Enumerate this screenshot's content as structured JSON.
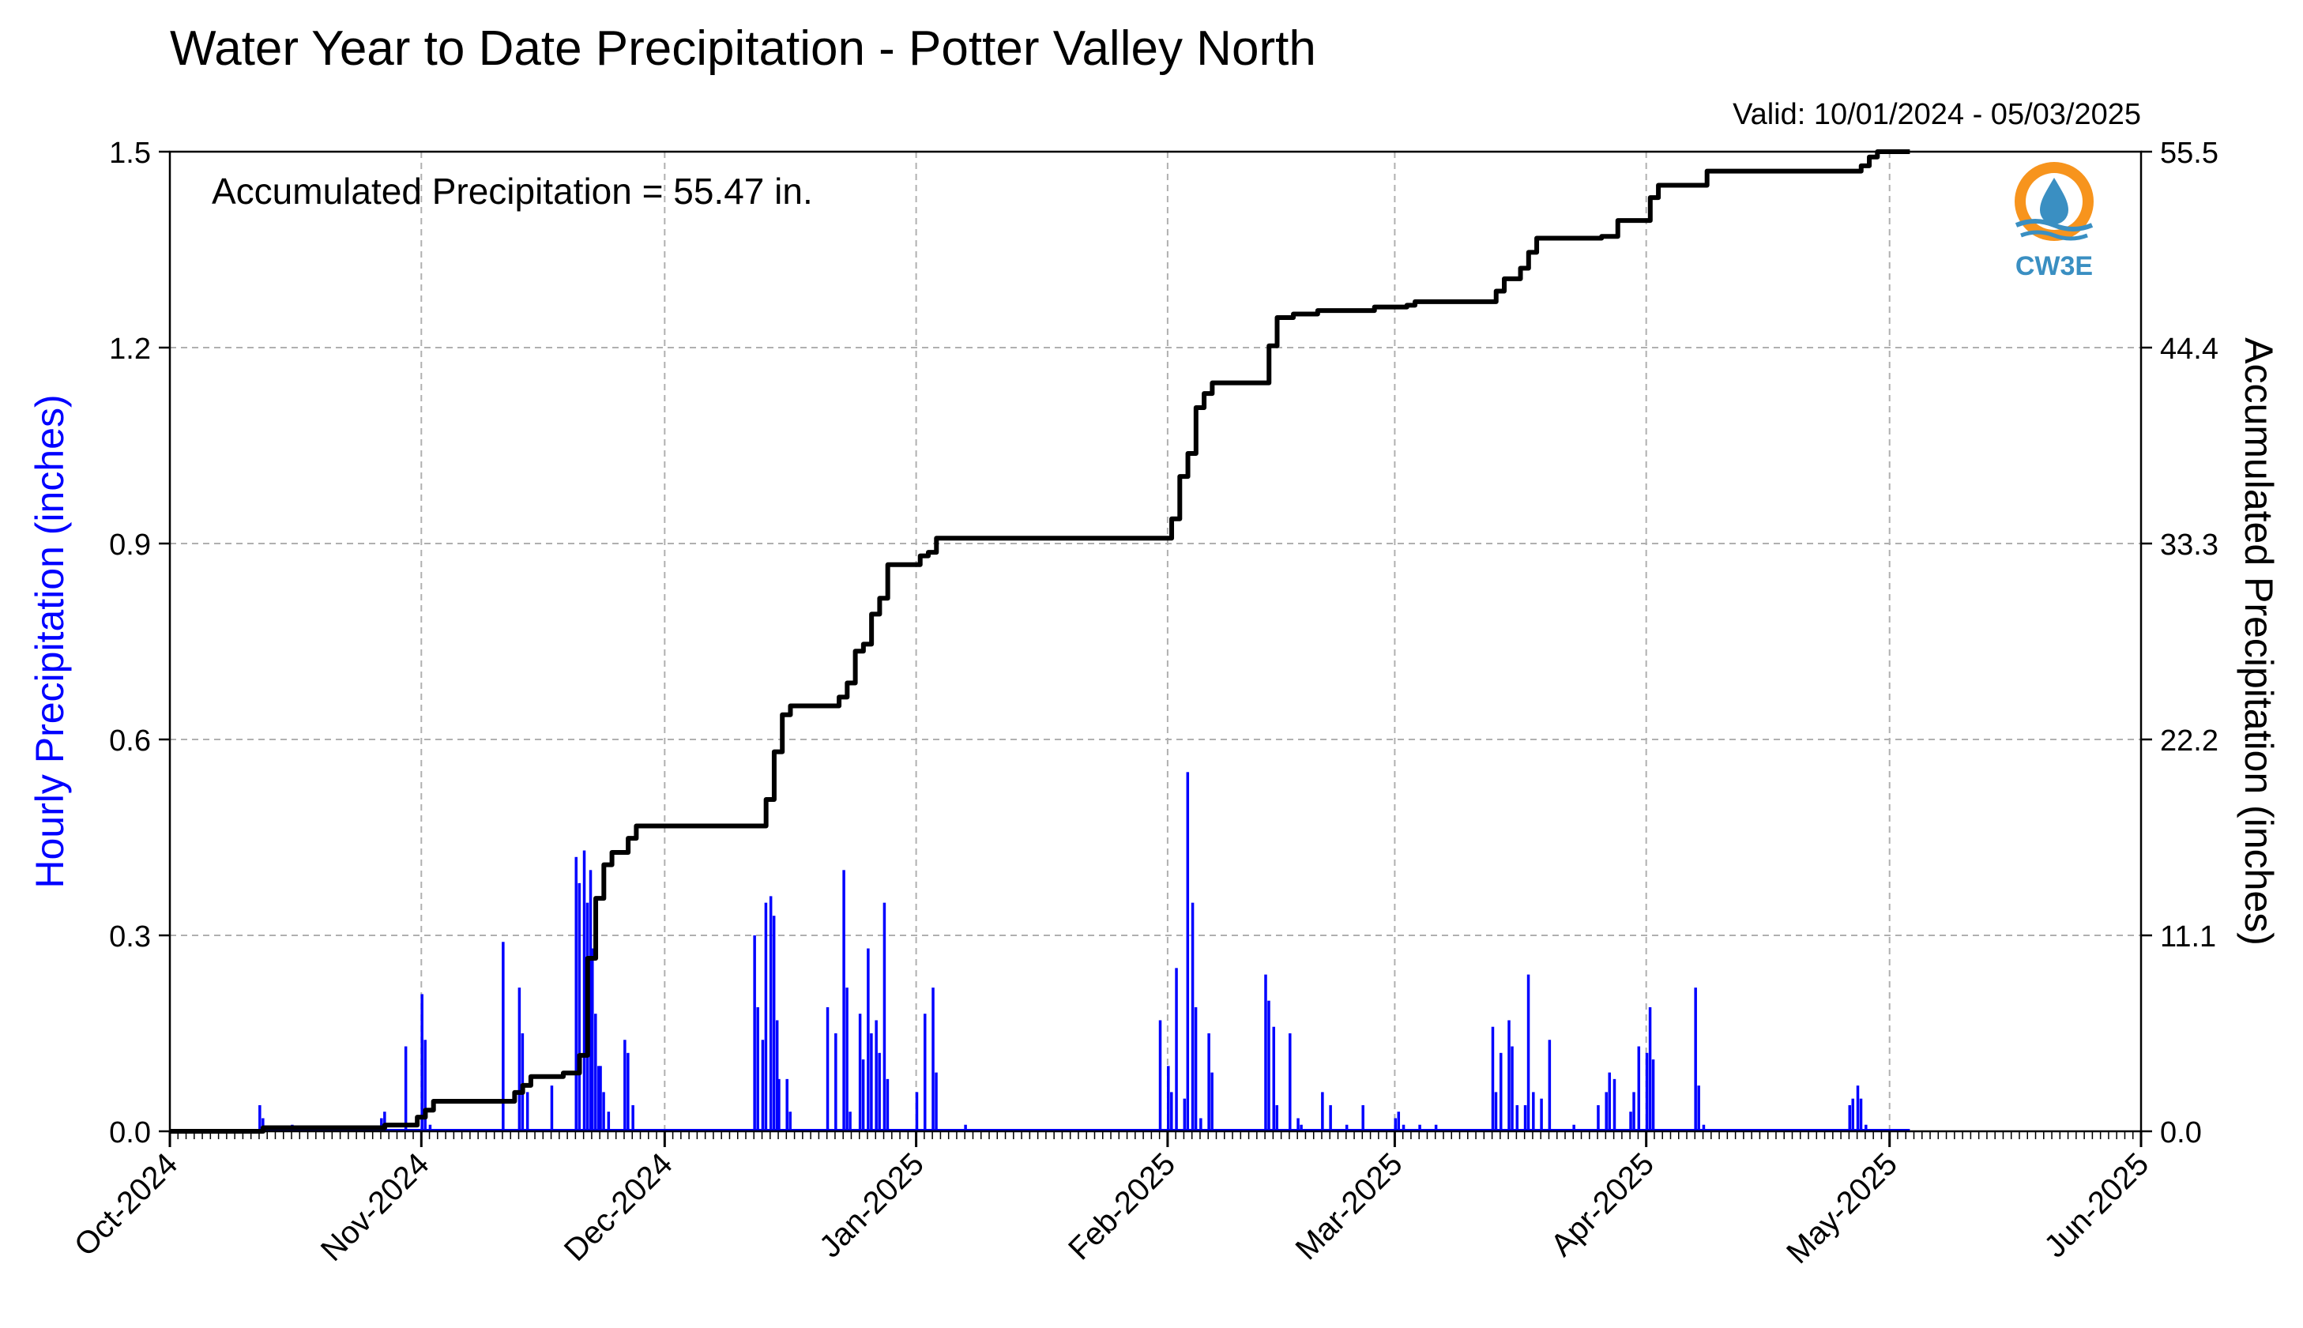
{
  "page": {
    "title": "Water Year to Date Precipitation - Potter Valley North",
    "valid": "Valid: 10/01/2024 - 05/03/2025",
    "annotation": "Accumulated Precipitation = 55.47 in.",
    "logo_text": "CW3E"
  },
  "colors": {
    "hourly": "#0000ff",
    "accumulated": "#000000",
    "grid": "#b0b0b0",
    "logo_orange": "#f7941d",
    "logo_blue": "#3a8fc2"
  },
  "chart_data": {
    "type": "bar+line",
    "title": "Water Year to Date Precipitation - Potter Valley North",
    "subtitle": "Valid: 10/01/2024 - 05/03/2025",
    "ylabel_left": "Hourly Precipitation (inches)",
    "ylabel_right": "Accumulated Precipitation (inches)",
    "xlim": [
      "2024-10-01",
      "2025-06-01"
    ],
    "ylim_left": [
      0,
      1.5
    ],
    "ylim_right": [
      0,
      55.5
    ],
    "x_ticks": [
      "Oct-2024",
      "Nov-2024",
      "Dec-2024",
      "Jan-2025",
      "Feb-2025",
      "Mar-2025",
      "Apr-2025",
      "May-2025",
      "Jun-2025"
    ],
    "x_tick_dates": [
      "2024-10-01",
      "2024-11-01",
      "2024-12-01",
      "2025-01-01",
      "2025-02-01",
      "2025-03-01",
      "2025-04-01",
      "2025-05-01",
      "2025-06-01"
    ],
    "y_ticks_left": [
      "0.0",
      "0.3",
      "0.6",
      "0.9",
      "1.2",
      "1.5"
    ],
    "y_ticks_right": [
      "0.0",
      "11.1",
      "22.2",
      "33.3",
      "44.4",
      "55.5"
    ],
    "grid": true,
    "series": [
      {
        "name": "Hourly Precipitation",
        "axis": "left",
        "kind": "bar",
        "points": [
          [
            "2024-10-12",
            0.04
          ],
          [
            "2024-10-12",
            0.02
          ],
          [
            "2024-10-16",
            0.01
          ],
          [
            "2024-10-27",
            0.02
          ],
          [
            "2024-10-27",
            0.03
          ],
          [
            "2024-10-30",
            0.13
          ],
          [
            "2024-11-01",
            0.21
          ],
          [
            "2024-11-01",
            0.14
          ],
          [
            "2024-11-02",
            0.01
          ],
          [
            "2024-11-11",
            0.29
          ],
          [
            "2024-11-13",
            0.22
          ],
          [
            "2024-11-13",
            0.15
          ],
          [
            "2024-11-14",
            0.06
          ],
          [
            "2024-11-17",
            0.07
          ],
          [
            "2024-11-20",
            0.42
          ],
          [
            "2024-11-20",
            0.38
          ],
          [
            "2024-11-21",
            0.43
          ],
          [
            "2024-11-21",
            0.35
          ],
          [
            "2024-11-21",
            0.4
          ],
          [
            "2024-11-22",
            0.28
          ],
          [
            "2024-11-22",
            0.18
          ],
          [
            "2024-11-22",
            0.1
          ],
          [
            "2024-11-23",
            0.1
          ],
          [
            "2024-11-23",
            0.06
          ],
          [
            "2024-11-24",
            0.03
          ],
          [
            "2024-11-26",
            0.14
          ],
          [
            "2024-11-26",
            0.12
          ],
          [
            "2024-11-27",
            0.04
          ],
          [
            "2024-12-12",
            0.3
          ],
          [
            "2024-12-12",
            0.19
          ],
          [
            "2024-12-13",
            0.14
          ],
          [
            "2024-12-13",
            0.35
          ],
          [
            "2024-12-14",
            0.36
          ],
          [
            "2024-12-14",
            0.33
          ],
          [
            "2024-12-14",
            0.17
          ],
          [
            "2024-12-15",
            0.08
          ],
          [
            "2024-12-16",
            0.08
          ],
          [
            "2024-12-16",
            0.03
          ],
          [
            "2024-12-21",
            0.19
          ],
          [
            "2024-12-22",
            0.15
          ],
          [
            "2024-12-23",
            0.4
          ],
          [
            "2024-12-23",
            0.22
          ],
          [
            "2024-12-23",
            0.03
          ],
          [
            "2024-12-25",
            0.18
          ],
          [
            "2024-12-25",
            0.11
          ],
          [
            "2024-12-26",
            0.28
          ],
          [
            "2024-12-26",
            0.15
          ],
          [
            "2024-12-27",
            0.17
          ],
          [
            "2024-12-27",
            0.12
          ],
          [
            "2024-12-28",
            0.35
          ],
          [
            "2024-12-28",
            0.08
          ],
          [
            "2025-01-01",
            0.06
          ],
          [
            "2025-01-02",
            0.18
          ],
          [
            "2025-01-03",
            0.22
          ],
          [
            "2025-01-03",
            0.09
          ],
          [
            "2025-01-07",
            0.01
          ],
          [
            "2025-01-31",
            0.17
          ],
          [
            "2025-02-01",
            0.1
          ],
          [
            "2025-02-01",
            0.06
          ],
          [
            "2025-02-02",
            0.25
          ],
          [
            "2025-02-03",
            0.05
          ],
          [
            "2025-02-03",
            0.55
          ],
          [
            "2025-02-04",
            0.35
          ],
          [
            "2025-02-04",
            0.19
          ],
          [
            "2025-02-05",
            0.02
          ],
          [
            "2025-02-06",
            0.15
          ],
          [
            "2025-02-06",
            0.09
          ],
          [
            "2025-02-13",
            0.24
          ],
          [
            "2025-02-13",
            0.2
          ],
          [
            "2025-02-14",
            0.16
          ],
          [
            "2025-02-14",
            0.04
          ],
          [
            "2025-02-16",
            0.15
          ],
          [
            "2025-02-17",
            0.02
          ],
          [
            "2025-02-17",
            0.01
          ],
          [
            "2025-02-20",
            0.06
          ],
          [
            "2025-02-21",
            0.04
          ],
          [
            "2025-02-23",
            0.01
          ],
          [
            "2025-02-25",
            0.04
          ],
          [
            "2025-03-01",
            0.02
          ],
          [
            "2025-03-01",
            0.03
          ],
          [
            "2025-03-02",
            0.01
          ],
          [
            "2025-03-04",
            0.01
          ],
          [
            "2025-03-06",
            0.01
          ],
          [
            "2025-03-13",
            0.16
          ],
          [
            "2025-03-13",
            0.06
          ],
          [
            "2025-03-14",
            0.12
          ],
          [
            "2025-03-15",
            0.17
          ],
          [
            "2025-03-15",
            0.13
          ],
          [
            "2025-03-16",
            0.04
          ],
          [
            "2025-03-17",
            0.04
          ],
          [
            "2025-03-17",
            0.24
          ],
          [
            "2025-03-18",
            0.06
          ],
          [
            "2025-03-19",
            0.05
          ],
          [
            "2025-03-20",
            0.14
          ],
          [
            "2025-03-23",
            0.01
          ],
          [
            "2025-03-26",
            0.04
          ],
          [
            "2025-03-27",
            0.06
          ],
          [
            "2025-03-27",
            0.09
          ],
          [
            "2025-03-28",
            0.08
          ],
          [
            "2025-03-30",
            0.03
          ],
          [
            "2025-03-30",
            0.06
          ],
          [
            "2025-03-31",
            0.13
          ],
          [
            "2025-04-01",
            0.12
          ],
          [
            "2025-04-01",
            0.19
          ],
          [
            "2025-04-01",
            0.11
          ],
          [
            "2025-04-07",
            0.22
          ],
          [
            "2025-04-07",
            0.07
          ],
          [
            "2025-04-08",
            0.01
          ],
          [
            "2025-04-26",
            0.04
          ],
          [
            "2025-04-26",
            0.05
          ],
          [
            "2025-04-27",
            0.07
          ],
          [
            "2025-04-27",
            0.05
          ],
          [
            "2025-04-28",
            0.01
          ]
        ]
      },
      {
        "name": "Accumulated Precipitation",
        "axis": "right",
        "kind": "step-line",
        "points": [
          [
            "2024-10-01",
            0.0
          ],
          [
            "2024-10-12",
            0.0
          ],
          [
            "2024-10-12",
            0.2
          ],
          [
            "2024-10-27",
            0.35
          ],
          [
            "2024-10-31",
            0.8
          ],
          [
            "2024-11-01",
            1.2
          ],
          [
            "2024-11-02",
            1.7
          ],
          [
            "2024-11-11",
            1.7
          ],
          [
            "2024-11-12",
            2.2
          ],
          [
            "2024-11-13",
            2.6
          ],
          [
            "2024-11-14",
            3.1
          ],
          [
            "2024-11-17",
            3.1
          ],
          [
            "2024-11-18",
            3.3
          ],
          [
            "2024-11-20",
            3.3
          ],
          [
            "2024-11-20",
            4.3
          ],
          [
            "2024-11-21",
            6.5
          ],
          [
            "2024-11-21",
            9.8
          ],
          [
            "2024-11-22",
            13.2
          ],
          [
            "2024-11-23",
            15.1
          ],
          [
            "2024-11-24",
            15.8
          ],
          [
            "2024-11-25",
            15.8
          ],
          [
            "2024-11-26",
            16.6
          ],
          [
            "2024-11-27",
            17.3
          ],
          [
            "2024-12-12",
            17.3
          ],
          [
            "2024-12-13",
            18.8
          ],
          [
            "2024-12-14",
            19.6
          ],
          [
            "2024-12-14",
            21.5
          ],
          [
            "2024-12-15",
            23.6
          ],
          [
            "2024-12-16",
            24.1
          ],
          [
            "2024-12-22",
            24.1
          ],
          [
            "2024-12-22",
            24.6
          ],
          [
            "2024-12-23",
            25.4
          ],
          [
            "2024-12-24",
            27.2
          ],
          [
            "2024-12-25",
            27.6
          ],
          [
            "2024-12-26",
            29.3
          ],
          [
            "2024-12-27",
            30.2
          ],
          [
            "2024-12-28",
            32.1
          ],
          [
            "2025-01-01",
            32.1
          ],
          [
            "2025-01-01",
            32.6
          ],
          [
            "2025-01-02",
            32.8
          ],
          [
            "2025-01-03",
            33.6
          ],
          [
            "2025-01-31",
            33.6
          ],
          [
            "2025-02-01",
            34.7
          ],
          [
            "2025-02-02",
            36.3
          ],
          [
            "2025-02-02",
            37.1
          ],
          [
            "2025-02-03",
            38.4
          ],
          [
            "2025-02-04",
            41.0
          ],
          [
            "2025-02-05",
            41.8
          ],
          [
            "2025-02-06",
            42.4
          ],
          [
            "2025-02-12",
            42.4
          ],
          [
            "2025-02-13",
            44.5
          ],
          [
            "2025-02-14",
            46.1
          ],
          [
            "2025-02-16",
            46.3
          ],
          [
            "2025-02-19",
            46.5
          ],
          [
            "2025-02-26",
            46.7
          ],
          [
            "2025-03-02",
            46.8
          ],
          [
            "2025-03-03",
            47.0
          ],
          [
            "2025-03-12",
            47.0
          ],
          [
            "2025-03-13",
            47.6
          ],
          [
            "2025-03-14",
            48.3
          ],
          [
            "2025-03-16",
            48.9
          ],
          [
            "2025-03-17",
            49.8
          ],
          [
            "2025-03-18",
            50.6
          ],
          [
            "2025-03-26",
            50.7
          ],
          [
            "2025-03-28",
            51.6
          ],
          [
            "2025-03-31",
            51.6
          ],
          [
            "2025-04-01",
            52.9
          ],
          [
            "2025-04-02",
            53.6
          ],
          [
            "2025-04-07",
            53.6
          ],
          [
            "2025-04-08",
            54.4
          ],
          [
            "2025-04-26",
            54.4
          ],
          [
            "2025-04-27",
            54.7
          ],
          [
            "2025-04-28",
            55.2
          ],
          [
            "2025-04-29",
            55.5
          ],
          [
            "2025-05-03",
            55.5
          ]
        ]
      }
    ]
  }
}
